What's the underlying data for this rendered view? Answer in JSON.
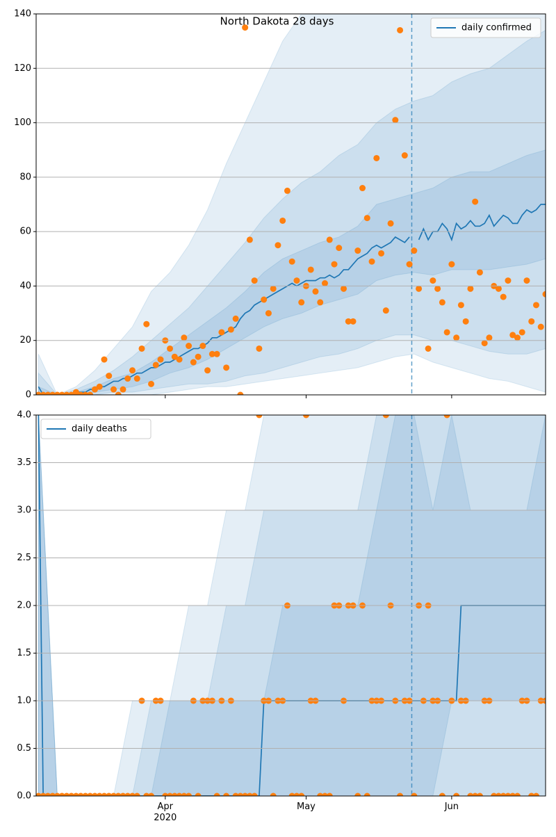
{
  "chart_data": [
    {
      "type": "line",
      "title": "North Dakota 28 days",
      "xlim": [
        -0.5,
        108
      ],
      "ylim": [
        0,
        140
      ],
      "yticks": [
        0,
        20,
        40,
        60,
        80,
        100,
        120,
        140
      ],
      "grid": true,
      "legend": "upper right",
      "vline": 79.5,
      "series": [
        {
          "name": "daily confirmed",
          "color": "#1f77b4",
          "values": [
            3,
            0,
            0,
            0,
            0,
            0,
            0,
            0,
            1,
            1,
            1,
            2,
            2,
            3,
            3,
            4,
            5,
            5,
            6,
            6,
            7,
            8,
            8,
            9,
            10,
            10,
            11,
            12,
            12,
            13,
            14,
            15,
            16,
            17,
            17,
            18,
            19,
            21,
            21,
            22,
            23,
            24,
            25,
            28,
            30,
            31,
            33,
            34,
            35,
            36,
            37,
            38,
            39,
            40,
            41,
            40,
            41,
            42,
            42,
            42,
            43,
            43,
            44,
            43,
            44,
            46,
            46,
            48,
            50,
            51,
            52,
            54,
            55,
            54,
            55,
            56,
            58,
            57,
            56,
            58,
            null,
            57,
            61,
            57,
            60,
            60,
            63,
            61,
            57,
            63,
            61,
            62,
            64,
            62,
            62,
            63,
            66,
            62,
            64,
            66,
            65,
            63,
            63,
            66,
            68,
            67,
            68,
            70,
            70
          ]
        }
      ],
      "observed": {
        "color": "#ff7f0e",
        "values": [
          0,
          0,
          0,
          0,
          0,
          0,
          0,
          0,
          1,
          0,
          0,
          0,
          2,
          3,
          13,
          7,
          2,
          0,
          2,
          6,
          9,
          6,
          17,
          26,
          4,
          11,
          13,
          20,
          17,
          14,
          13,
          21,
          18,
          12,
          14,
          18,
          9,
          15,
          15,
          23,
          10,
          24,
          28,
          0,
          135,
          57,
          42,
          17,
          35,
          30,
          39,
          55,
          64,
          75,
          49,
          42,
          34,
          40,
          46,
          38,
          34,
          41,
          57,
          48,
          54,
          39,
          27,
          27,
          53,
          76,
          65,
          49,
          87,
          52,
          31,
          63,
          101,
          134,
          88,
          48,
          53,
          39,
          null,
          17,
          42,
          39,
          34,
          23,
          48,
          21,
          33,
          27,
          39,
          71,
          45,
          19,
          21,
          40,
          39,
          36,
          42,
          22,
          21,
          23,
          42,
          27,
          33,
          25,
          37
        ]
      },
      "bands": {
        "color": "#1f77b4",
        "x": [
          0,
          4,
          8,
          12,
          16,
          20,
          24,
          28,
          32,
          36,
          40,
          44,
          48,
          52,
          56,
          60,
          64,
          68,
          72,
          76,
          80,
          84,
          88,
          92,
          96,
          100,
          104,
          108
        ],
        "ranges": [
          {
            "lower": [
              0,
              0,
              0,
              0,
              0,
              0,
              0,
              1,
              2,
              3,
              3,
              4,
              5,
              6,
              7,
              8,
              9,
              10,
              12,
              14,
              15,
              12,
              10,
              8,
              6,
              5,
              3,
              1
            ],
            "upper": [
              15,
              0,
              3,
              9,
              17,
              25,
              38,
              45,
              55,
              68,
              85,
              100,
              115,
              130,
              140,
              140,
              140,
              140,
              140,
              140,
              140,
              140,
              140,
              140,
              140,
              140,
              140,
              140
            ]
          },
          {
            "lower": [
              0,
              0,
              0,
              0,
              1,
              1,
              2,
              3,
              4,
              4,
              5,
              7,
              8,
              10,
              12,
              14,
              15,
              17,
              20,
              22,
              22,
              20,
              20,
              18,
              16,
              15,
              15,
              17
            ],
            "upper": [
              8,
              0,
              2,
              5,
              9,
              14,
              20,
              26,
              32,
              40,
              48,
              56,
              65,
              72,
              78,
              82,
              88,
              92,
              100,
              105,
              108,
              110,
              115,
              118,
              120,
              125,
              130,
              134
            ]
          },
          {
            "lower": [
              0,
              0,
              0,
              1,
              2,
              3,
              5,
              8,
              10,
              13,
              17,
              21,
              25,
              28,
              30,
              33,
              35,
              37,
              42,
              44,
              45,
              44,
              46,
              46,
              46,
              47,
              48,
              50
            ],
            "upper": [
              3,
              0,
              1,
              3,
              6,
              8,
              12,
              17,
              22,
              27,
              32,
              38,
              45,
              50,
              53,
              56,
              58,
              62,
              70,
              72,
              74,
              76,
              80,
              82,
              82,
              85,
              88,
              90
            ]
          }
        ]
      }
    },
    {
      "type": "line",
      "xlim": [
        -0.5,
        108
      ],
      "ylim": [
        0,
        4
      ],
      "yticks": [
        {
          "value": 0,
          "label": "0.0"
        },
        0.5,
        {
          "value": 1,
          "label": "1.0"
        },
        1.5,
        {
          "value": 2,
          "label": "2.0"
        },
        2.5,
        {
          "value": 3,
          "label": "3.0"
        },
        3.5,
        {
          "value": 4,
          "label": "4.0"
        }
      ],
      "grid": true,
      "legend": "upper left",
      "vline": 79.5,
      "xticks": [
        {
          "value": 27,
          "label": "Apr\n2020"
        },
        {
          "value": 57,
          "label": "May"
        },
        {
          "value": 88,
          "label": "Jun"
        }
      ],
      "series": [
        {
          "name": "daily deaths",
          "color": "#1f77b4",
          "values": [
            4,
            0,
            0,
            0,
            0,
            0,
            0,
            0,
            0,
            0,
            0,
            0,
            0,
            0,
            0,
            0,
            0,
            0,
            0,
            0,
            0,
            0,
            0,
            0,
            0,
            0,
            0,
            0,
            0,
            0,
            0,
            0,
            0,
            0,
            0,
            0,
            0,
            0,
            0,
            0,
            0,
            0,
            0,
            0,
            0,
            0,
            0,
            0,
            1,
            1,
            1,
            1,
            1,
            1,
            1,
            1,
            1,
            1,
            1,
            1,
            1,
            1,
            1,
            1,
            1,
            1,
            1,
            1,
            1,
            1,
            1,
            1,
            1,
            1,
            1,
            1,
            1,
            1,
            1,
            1,
            1,
            1,
            1,
            1,
            1,
            1,
            1,
            1,
            1,
            1,
            2,
            2,
            2,
            2,
            2,
            2,
            2,
            2,
            2,
            2,
            2,
            2,
            2,
            2,
            2,
            2,
            2,
            2,
            2
          ]
        }
      ],
      "observed": {
        "color": "#ff7f0e",
        "values": [
          0,
          0,
          0,
          0,
          0,
          0,
          0,
          0,
          0,
          0,
          0,
          0,
          0,
          0,
          0,
          0,
          0,
          0,
          0,
          0,
          0,
          0,
          1,
          0,
          0,
          1,
          1,
          0,
          0,
          0,
          0,
          0,
          0,
          1,
          0,
          1,
          1,
          1,
          0,
          1,
          0,
          1,
          0,
          0,
          0,
          0,
          0,
          4,
          1,
          1,
          0,
          1,
          1,
          2,
          0,
          0,
          0,
          4,
          1,
          1,
          0,
          0,
          0,
          2,
          2,
          1,
          2,
          2,
          0,
          2,
          0,
          1,
          1,
          1,
          4,
          2,
          1,
          0,
          1,
          1,
          0,
          2,
          1,
          2,
          1,
          1,
          0,
          4,
          1,
          0,
          1,
          1,
          0,
          0,
          0,
          1,
          1,
          0,
          0,
          0,
          0,
          0,
          0,
          1,
          1,
          0,
          0,
          1,
          1
        ]
      },
      "bands": {
        "color": "#1f77b4",
        "x": [
          0,
          4,
          8,
          12,
          16,
          20,
          24,
          28,
          32,
          36,
          40,
          44,
          48,
          52,
          56,
          60,
          64,
          68,
          72,
          76,
          80,
          84,
          88,
          92,
          96,
          100,
          104,
          108
        ],
        "ranges": [
          {
            "lower": [
              0,
              0,
              0,
              0,
              0,
              0,
              0,
              0,
              0,
              0,
              0,
              0,
              0,
              0,
              0,
              0,
              0,
              0,
              0,
              0,
              0,
              0,
              0,
              0,
              0,
              0,
              0,
              0
            ],
            "upper": [
              4,
              0,
              0,
              0,
              0,
              1,
              1,
              1,
              2,
              2,
              3,
              3,
              4,
              4,
              4,
              4,
              4,
              4,
              4,
              4,
              4,
              4,
              4,
              4,
              4,
              4,
              4,
              4
            ]
          },
          {
            "lower": [
              0,
              0,
              0,
              0,
              0,
              0,
              0,
              0,
              0,
              0,
              0,
              0,
              0,
              0,
              0,
              0,
              0,
              0,
              0,
              0,
              0,
              0,
              0,
              0,
              0,
              0,
              0,
              0
            ],
            "upper": [
              4,
              0,
              0,
              0,
              0,
              0,
              1,
              1,
              1,
              1,
              2,
              2,
              3,
              3,
              3,
              3,
              3,
              3,
              4,
              4,
              4,
              4,
              4,
              4,
              4,
              4,
              4,
              4
            ]
          },
          {
            "lower": [
              0,
              0,
              0,
              0,
              0,
              0,
              0,
              0,
              0,
              0,
              0,
              0,
              0,
              0,
              0,
              0,
              0,
              0,
              0,
              0,
              0,
              0,
              1,
              1,
              1,
              1,
              1,
              1
            ],
            "upper": [
              4,
              0,
              0,
              0,
              0,
              0,
              0,
              1,
              1,
              1,
              1,
              1,
              1,
              2,
              2,
              2,
              2,
              2,
              3,
              4,
              4,
              3,
              4,
              3,
              3,
              3,
              3,
              4
            ]
          }
        ]
      }
    }
  ]
}
